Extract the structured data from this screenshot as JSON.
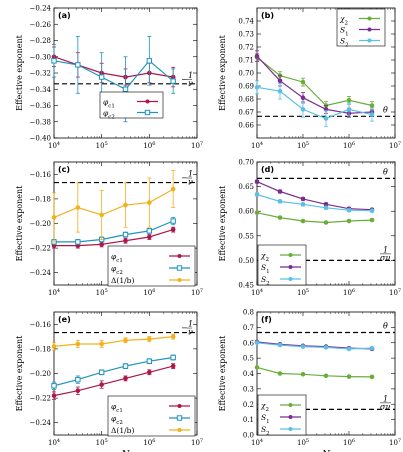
{
  "chart_data": [
    {
      "panel": "(a)",
      "type": "line",
      "xlog": true,
      "xlim": [
        10000,
        10000000
      ],
      "ylim": [
        -0.4,
        -0.24
      ],
      "yticks": [
        -0.4,
        -0.38,
        -0.36,
        -0.34,
        -0.32,
        -0.3,
        -0.28,
        -0.26,
        -0.24
      ],
      "xlabel": "",
      "ylabel": "Effective exponent",
      "series": [
        {
          "name": "φc1",
          "color": "#b0164a",
          "marker": "circle",
          "x": [
            10000,
            31623,
            100000,
            316228,
            1000000,
            3162278
          ],
          "y": [
            -0.3,
            -0.31,
            -0.32,
            -0.325,
            -0.32,
            -0.325
          ],
          "err": [
            0.012,
            0.015,
            0.012,
            0.01,
            0.012,
            0.012
          ]
        },
        {
          "name": "φc2",
          "color": "#1f93be",
          "marker": "square",
          "x": [
            10000,
            31623,
            100000,
            316228,
            1000000,
            3162278
          ],
          "y": [
            -0.305,
            -0.31,
            -0.325,
            -0.34,
            -0.305,
            -0.33
          ],
          "err": [
            0.02,
            0.035,
            0.03,
            0.04,
            0.03,
            0.015
          ]
        }
      ],
      "hlines": [
        {
          "y": -0.3333,
          "label": "−1/ν"
        }
      ],
      "legend": "bottom-left"
    },
    {
      "panel": "(b)",
      "type": "line",
      "xlog": true,
      "xlim": [
        10000,
        10000000
      ],
      "ylim": [
        0.65,
        0.75
      ],
      "yticks": [
        0.66,
        0.67,
        0.68,
        0.69,
        0.7,
        0.71,
        0.72,
        0.73,
        0.74
      ],
      "xlabel": "",
      "ylabel": "Effective exponent",
      "series": [
        {
          "name": "χ2",
          "color": "#6aae3a",
          "marker": "circle",
          "x": [
            10000,
            31623,
            100000,
            316228,
            1000000,
            3162278
          ],
          "y": [
            0.712,
            0.698,
            0.693,
            0.675,
            0.679,
            0.675
          ],
          "err": [
            0.003,
            0.003,
            0.003,
            0.003,
            0.003,
            0.003
          ]
        },
        {
          "name": "S1",
          "color": "#7b2e8e",
          "marker": "circle",
          "x": [
            10000,
            31623,
            100000,
            316228,
            1000000,
            3162278
          ],
          "y": [
            0.713,
            0.694,
            0.681,
            0.672,
            0.669,
            0.67
          ],
          "err": [
            0.004,
            0.004,
            0.004,
            0.003,
            0.003,
            0.003
          ]
        },
        {
          "name": "S2",
          "color": "#5bc0e6",
          "marker": "circle",
          "x": [
            10000,
            31623,
            100000,
            316228,
            1000000,
            3162278
          ],
          "y": [
            0.689,
            0.686,
            0.672,
            0.665,
            0.672,
            0.668
          ],
          "err": [
            0.005,
            0.006,
            0.006,
            0.006,
            0.005,
            0.005
          ]
        }
      ],
      "hlines": [
        {
          "y": 0.6667,
          "label": "θ"
        }
      ],
      "legend": "top-right"
    },
    {
      "panel": "(c)",
      "type": "line",
      "xlog": true,
      "xlim": [
        10000,
        10000000
      ],
      "ylim": [
        -0.25,
        -0.15
      ],
      "yticks": [
        -0.24,
        -0.22,
        -0.2,
        -0.18,
        -0.16
      ],
      "xlabel": "",
      "ylabel": "Effective exponent",
      "series": [
        {
          "name": "φc1",
          "color": "#b0164a",
          "marker": "circle",
          "x": [
            10000,
            31623,
            100000,
            316228,
            1000000,
            3162278
          ],
          "y": [
            -0.218,
            -0.218,
            -0.217,
            -0.214,
            -0.211,
            -0.205
          ],
          "err": [
            0.002,
            0.002,
            0.002,
            0.002,
            0.002,
            0.002
          ]
        },
        {
          "name": "φc2",
          "color": "#1f93be",
          "marker": "square",
          "x": [
            10000,
            31623,
            100000,
            316228,
            1000000,
            3162278
          ],
          "y": [
            -0.215,
            -0.215,
            -0.213,
            -0.209,
            -0.206,
            -0.198
          ],
          "err": [
            0.002,
            0.002,
            0.002,
            0.002,
            0.002,
            0.003
          ]
        },
        {
          "name": "Δ(1/b)",
          "color": "#f2b01d",
          "marker": "circle",
          "x": [
            10000,
            31623,
            100000,
            316228,
            1000000,
            3162278
          ],
          "y": [
            -0.195,
            -0.187,
            -0.193,
            -0.185,
            -0.183,
            -0.172
          ],
          "err": [
            0.02,
            0.02,
            0.02,
            0.018,
            0.02,
            0.015
          ]
        }
      ],
      "hlines": [
        {
          "y": -0.1667,
          "label": "−1/ν"
        }
      ],
      "legend": "bottom-right"
    },
    {
      "panel": "(d)",
      "type": "line",
      "xlog": true,
      "xlim": [
        10000,
        10000000
      ],
      "ylim": [
        0.45,
        0.7
      ],
      "yticks": [
        0.45,
        0.5,
        0.55,
        0.6,
        0.65,
        0.7
      ],
      "xlabel": "",
      "ylabel": "Effective exponent",
      "series": [
        {
          "name": "χ2",
          "color": "#6aae3a",
          "marker": "circle",
          "x": [
            10000,
            31623,
            100000,
            316228,
            1000000,
            3162278
          ],
          "y": [
            0.597,
            0.587,
            0.58,
            0.577,
            0.58,
            0.582
          ],
          "err": [
            0.002,
            0.002,
            0.002,
            0.002,
            0.002,
            0.002
          ]
        },
        {
          "name": "S1",
          "color": "#7b2e8e",
          "marker": "circle",
          "x": [
            10000,
            31623,
            100000,
            316228,
            1000000,
            3162278
          ],
          "y": [
            0.66,
            0.64,
            0.625,
            0.614,
            0.605,
            0.603
          ],
          "err": [
            0.003,
            0.003,
            0.003,
            0.003,
            0.003,
            0.003
          ]
        },
        {
          "name": "S2",
          "color": "#5bc0e6",
          "marker": "circle",
          "x": [
            10000,
            31623,
            100000,
            316228,
            1000000,
            3162278
          ],
          "y": [
            0.634,
            0.62,
            0.614,
            0.607,
            0.602,
            0.601
          ],
          "err": [
            0.003,
            0.003,
            0.003,
            0.003,
            0.003,
            0.003
          ]
        }
      ],
      "hlines": [
        {
          "y": 0.6667,
          "label": "θ"
        },
        {
          "y": 0.5,
          "label": "1/(σν)"
        }
      ],
      "legend": "bottom-left"
    },
    {
      "panel": "(e)",
      "type": "line",
      "xlog": true,
      "xlim": [
        10000,
        10000000
      ],
      "ylim": [
        -0.25,
        -0.15
      ],
      "yticks": [
        -0.24,
        -0.22,
        -0.2,
        -0.18,
        -0.16
      ],
      "xlabel": "N",
      "ylabel": "Effective exponent",
      "series": [
        {
          "name": "φc1",
          "color": "#b0164a",
          "marker": "circle",
          "x": [
            10000,
            31623,
            100000,
            316228,
            1000000,
            3162278
          ],
          "y": [
            -0.218,
            -0.214,
            -0.209,
            -0.204,
            -0.199,
            -0.194
          ],
          "err": [
            0.003,
            0.003,
            0.003,
            0.002,
            0.002,
            0.002
          ]
        },
        {
          "name": "φc2",
          "color": "#1f93be",
          "marker": "square",
          "x": [
            10000,
            31623,
            100000,
            316228,
            1000000,
            3162278
          ],
          "y": [
            -0.21,
            -0.205,
            -0.199,
            -0.194,
            -0.19,
            -0.187
          ],
          "err": [
            0.003,
            0.003,
            0.002,
            0.002,
            0.002,
            0.002
          ]
        },
        {
          "name": "Δ(1/b)",
          "color": "#f2b01d",
          "marker": "circle",
          "x": [
            10000,
            31623,
            100000,
            316228,
            1000000,
            3162278
          ],
          "y": [
            -0.178,
            -0.176,
            -0.176,
            -0.173,
            -0.172,
            -0.17
          ],
          "err": [
            0.003,
            0.003,
            0.003,
            0.002,
            0.002,
            0.002
          ]
        }
      ],
      "hlines": [
        {
          "y": -0.1667,
          "label": "−1/ν"
        }
      ],
      "legend": "bottom-right"
    },
    {
      "panel": "(f)",
      "type": "line",
      "xlog": true,
      "xlim": [
        10000,
        10000000
      ],
      "ylim": [
        0.0,
        0.8
      ],
      "yticks": [
        0.0,
        0.1,
        0.2,
        0.3,
        0.4,
        0.5,
        0.6,
        0.7,
        0.8
      ],
      "xlabel": "N",
      "ylabel": "Effective exponent",
      "series": [
        {
          "name": "χ2",
          "color": "#6aae3a",
          "marker": "circle",
          "x": [
            10000,
            31623,
            100000,
            316228,
            1000000,
            3162278
          ],
          "y": [
            0.44,
            0.4,
            0.395,
            0.385,
            0.38,
            0.378
          ],
          "err": [
            0.005,
            0.005,
            0.005,
            0.005,
            0.005,
            0.005
          ]
        },
        {
          "name": "S1",
          "color": "#7b2e8e",
          "marker": "circle",
          "x": [
            10000,
            31623,
            100000,
            316228,
            1000000,
            3162278
          ],
          "y": [
            0.605,
            0.59,
            0.58,
            0.575,
            0.565,
            0.56
          ],
          "err": [
            0.005,
            0.005,
            0.005,
            0.005,
            0.005,
            0.005
          ]
        },
        {
          "name": "S2",
          "color": "#5bc0e6",
          "marker": "circle",
          "x": [
            10000,
            31623,
            100000,
            316228,
            1000000,
            3162278
          ],
          "y": [
            0.6,
            0.585,
            0.575,
            0.57,
            0.56,
            0.565
          ],
          "err": [
            0.005,
            0.005,
            0.005,
            0.005,
            0.005,
            0.005
          ]
        }
      ],
      "hlines": [
        {
          "y": 0.6667,
          "label": "θ"
        },
        {
          "y": 0.1667,
          "label": "1/(σν)"
        }
      ],
      "legend": "bottom-left"
    }
  ]
}
